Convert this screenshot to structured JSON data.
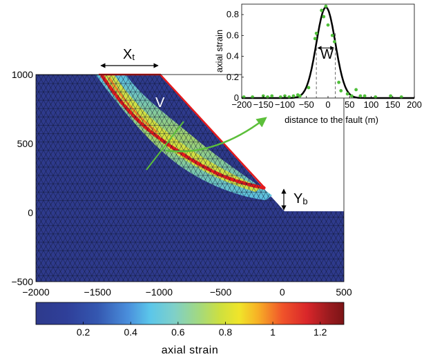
{
  "main_plot": {
    "x_ticks": [
      "−2000",
      "−1500",
      "−1000",
      "−500",
      "0",
      "500"
    ],
    "y_ticks": [
      "1000",
      "500",
      "0",
      "−500"
    ],
    "x_range": [
      -2000,
      500
    ],
    "y_range": [
      -500,
      1000
    ],
    "x_tick_values": [
      -2000,
      -1500,
      -1000,
      -500,
      0,
      500
    ],
    "y_tick_values": [
      1000,
      500,
      0,
      -500
    ],
    "annotations": {
      "xt": "X",
      "xt_sub": "t",
      "v": "V",
      "yb": "Y",
      "yb_sub": "b"
    },
    "colors": {
      "background": "#2e3a8c",
      "scarp": "#e41a1c",
      "arrow": "#5cbf3a"
    }
  },
  "colorbar": {
    "label": "axial strain",
    "ticks": [
      "0.2",
      "0.4",
      "0.6",
      "0.8",
      "1",
      "1.2"
    ],
    "tick_values": [
      0.2,
      0.4,
      0.6,
      0.8,
      1.0,
      1.2
    ],
    "range": [
      0,
      1.3
    ]
  },
  "chart_data": {
    "type": "scatter",
    "xlabel": "distance to the fault (m)",
    "ylabel": "axial strain",
    "xlim": [
      -200,
      200
    ],
    "ylim": [
      0,
      0.9
    ],
    "x_ticks": [
      "−200",
      "−150",
      "−100",
      "−50",
      "0",
      "50",
      "100",
      "150",
      "200"
    ],
    "x_tick_values": [
      -200,
      -150,
      -100,
      -50,
      0,
      50,
      100,
      150,
      200
    ],
    "y_ticks": [
      "0",
      "0.2",
      "0.4",
      "0.6",
      "0.8"
    ],
    "y_tick_values": [
      0,
      0.2,
      0.4,
      0.6,
      0.8
    ],
    "width_label": "W",
    "series": [
      {
        "kind": "points",
        "color": "#4fbf3a",
        "x": [
          -195,
          -175,
          -150,
          -140,
          -130,
          -110,
          -100,
          -90,
          -80,
          -70,
          -65,
          -45,
          -30,
          -27,
          -15,
          -10,
          -5,
          0,
          10,
          15,
          25,
          30,
          45,
          55,
          65,
          75,
          85,
          110,
          145,
          170
        ],
        "y": [
          0.01,
          0.01,
          0.02,
          0.01,
          0.02,
          0.01,
          0.02,
          0.01,
          0.02,
          0.03,
          0.02,
          0.1,
          0.57,
          0.62,
          0.84,
          0.78,
          0.88,
          0.7,
          0.6,
          0.54,
          0.15,
          0.07,
          0.04,
          0.02,
          0.08,
          0.02,
          0.02,
          0.01,
          0.02,
          0.01
        ]
      },
      {
        "kind": "curve",
        "color": "#000000",
        "peak": 0.87,
        "center": -5,
        "sigma": 22
      }
    ]
  }
}
